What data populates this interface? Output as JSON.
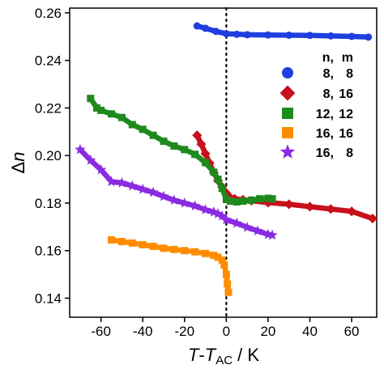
{
  "chart_data": {
    "type": "scatter",
    "title": "",
    "xlabel": {
      "main": "T",
      "dash": "-",
      "main2": "T",
      "sub": "AC",
      "unit": " / K"
    },
    "ylabel": {
      "delta": "Δ",
      "var": "n"
    },
    "xlim": [
      -75,
      72
    ],
    "ylim": [
      0.132,
      0.262
    ],
    "x_ticks": [
      -60,
      -40,
      -20,
      0,
      20,
      40,
      60
    ],
    "y_ticks": [
      0.14,
      0.16,
      0.18,
      0.2,
      0.22,
      0.24,
      0.26
    ],
    "y_tick_labels": [
      "0.14",
      "0.16",
      "0.18",
      "0.20",
      "0.22",
      "0.24",
      "0.26"
    ],
    "grid": false,
    "reference_line": {
      "x": 0,
      "style": "dotted"
    },
    "legend": {
      "placement": "right",
      "header_n": "n,",
      "header_m": "m"
    },
    "series": [
      {
        "name_n": "8,",
        "name_m": "8",
        "color": "#1f3fe0",
        "marker": "circle",
        "x": [
          -14,
          -10,
          -5,
          0,
          5,
          10,
          20,
          30,
          40,
          50,
          60,
          68
        ],
        "y": [
          0.2545,
          0.2535,
          0.2522,
          0.2512,
          0.251,
          0.2508,
          0.2507,
          0.2506,
          0.2505,
          0.2503,
          0.2501,
          0.2498
        ]
      },
      {
        "name_n": "8,",
        "name_m": "16",
        "color": "#c8101c",
        "marker": "diamond",
        "x": [
          -14,
          -12,
          -10,
          -8,
          -6,
          -4,
          -2,
          0,
          1,
          2,
          4,
          8,
          12,
          20,
          30,
          40,
          50,
          60,
          70
        ],
        "y": [
          0.2085,
          0.2048,
          0.2008,
          0.1968,
          0.1928,
          0.1895,
          0.1868,
          0.1842,
          0.1828,
          0.1822,
          0.1818,
          0.1814,
          0.181,
          0.1802,
          0.1795,
          0.1785,
          0.1775,
          0.1765,
          0.1735
        ]
      },
      {
        "name_n": "12,",
        "name_m": "12",
        "color": "#1e8a1e",
        "marker": "square",
        "x": [
          -65,
          -62,
          -60,
          -55,
          -50,
          -45,
          -40,
          -35,
          -30,
          -25,
          -20,
          -15,
          -10,
          -6,
          -4,
          -2,
          0,
          2,
          5,
          8,
          12,
          16,
          20,
          22
        ],
        "y": [
          0.224,
          0.22,
          0.219,
          0.2175,
          0.216,
          0.213,
          0.211,
          0.2085,
          0.206,
          0.204,
          0.2025,
          0.2005,
          0.197,
          0.193,
          0.19,
          0.1862,
          0.1815,
          0.1808,
          0.1805,
          0.1808,
          0.1812,
          0.1818,
          0.182,
          0.1818
        ]
      },
      {
        "name_n": "16,",
        "name_m": "16",
        "color": "#ff8c00",
        "marker": "square",
        "x": [
          -55,
          -50,
          -45,
          -40,
          -35,
          -30,
          -25,
          -20,
          -15,
          -10,
          -6,
          -4,
          -2,
          -1,
          0,
          0.5,
          1
        ],
        "y": [
          0.1645,
          0.1638,
          0.1632,
          0.1625,
          0.1618,
          0.161,
          0.1605,
          0.16,
          0.1595,
          0.1588,
          0.158,
          0.1572,
          0.156,
          0.154,
          0.15,
          0.146,
          0.1425
        ]
      },
      {
        "name_n": "16,",
        "name_m": "8",
        "color": "#8a2be2",
        "marker": "star",
        "x": [
          -70,
          -65,
          -60,
          -55,
          -50,
          -45,
          -40,
          -35,
          -30,
          -25,
          -20,
          -15,
          -10,
          -6,
          -4,
          -2,
          0,
          5,
          10,
          15,
          20,
          22
        ],
        "y": [
          0.2025,
          0.198,
          0.194,
          0.189,
          0.1885,
          0.1872,
          0.1858,
          0.1845,
          0.1828,
          0.1812,
          0.18,
          0.1788,
          0.1772,
          0.1762,
          0.1755,
          0.1745,
          0.173,
          0.1715,
          0.1698,
          0.1683,
          0.1668,
          0.1665
        ]
      }
    ]
  }
}
